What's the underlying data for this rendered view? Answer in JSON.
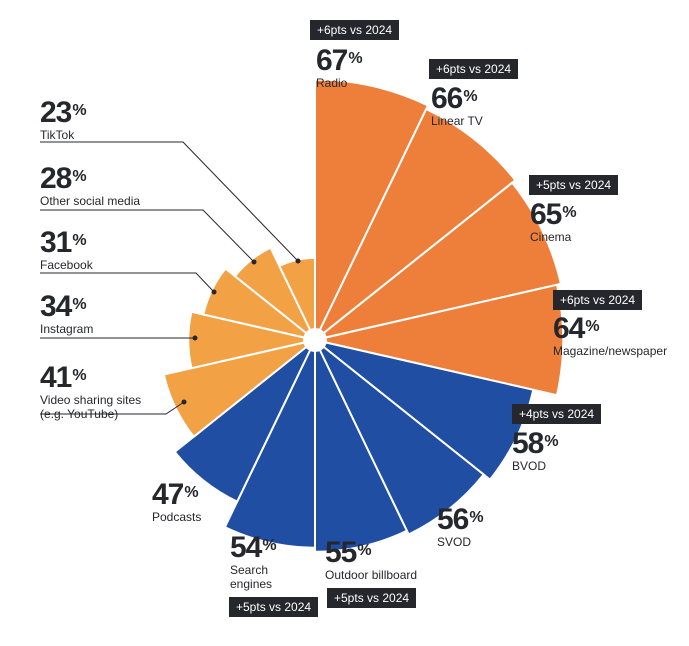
{
  "chart_data": {
    "type": "polar-area",
    "unit": "%",
    "colors": {
      "group_a": "#EE7F3B",
      "group_b": "#1F4EA3",
      "group_c": "#F2A145",
      "badge": "#26272c"
    },
    "slices": [
      {
        "label": "Radio",
        "value": 67,
        "group": "group_a",
        "badge": "+6pts vs 2024"
      },
      {
        "label": "Linear TV",
        "value": 66,
        "group": "group_a",
        "badge": "+6pts vs 2024"
      },
      {
        "label": "Cinema",
        "value": 65,
        "group": "group_a",
        "badge": "+5pts vs 2024"
      },
      {
        "label": "Magazine/newspaper",
        "value": 64,
        "group": "group_a",
        "badge": "+6pts vs 2024"
      },
      {
        "label": "BVOD",
        "value": 58,
        "group": "group_b",
        "badge": "+4pts vs 2024"
      },
      {
        "label": "SVOD",
        "value": 56,
        "group": "group_b",
        "badge": ""
      },
      {
        "label": "Outdoor billboard",
        "value": 55,
        "group": "group_b",
        "badge": "+5pts vs 2024"
      },
      {
        "label": "Search engines",
        "value": 54,
        "group": "group_b",
        "badge": "+5pts vs 2024"
      },
      {
        "label": "Podcasts",
        "value": 47,
        "group": "group_b",
        "badge": ""
      },
      {
        "label": "Video sharing sites (e.g. YouTube)",
        "value": 41,
        "group": "group_c",
        "badge": ""
      },
      {
        "label": "Instagram",
        "value": 34,
        "group": "group_c",
        "badge": ""
      },
      {
        "label": "Facebook",
        "value": 31,
        "group": "group_c",
        "badge": ""
      },
      {
        "label": "Other social media",
        "value": 28,
        "group": "group_c",
        "badge": ""
      },
      {
        "label": "TikTok",
        "value": 23,
        "group": "group_c",
        "badge": ""
      }
    ]
  }
}
